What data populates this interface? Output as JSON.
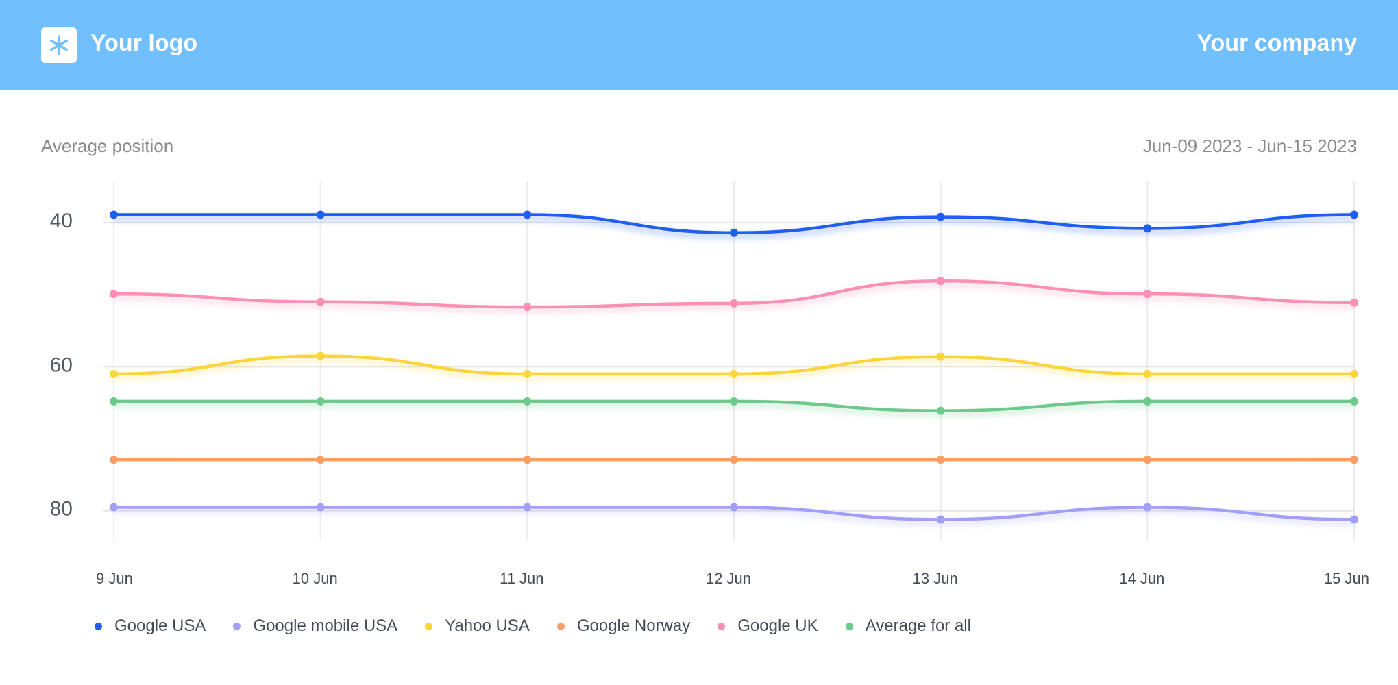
{
  "header": {
    "logo_label": "Your logo",
    "logo_icon": "asterisk-icon",
    "company": "Your company",
    "background_color": "#72bffd"
  },
  "subtitle": "Average position",
  "date_range": "Jun-09 2023 - Jun-15 2023",
  "chart_data": {
    "type": "line",
    "title": "",
    "xlabel": "",
    "ylabel": "",
    "categories": [
      "9 Jun",
      "10 Jun",
      "11 Jun",
      "12 Jun",
      "13 Jun",
      "14 Jun",
      "15 Jun"
    ],
    "y_ticks": [
      40,
      60,
      80
    ],
    "ylim": [
      84.5,
      34.5
    ],
    "y_inverted": true,
    "grid": true,
    "legend_position": "bottom-left",
    "series": [
      {
        "name": "Google USA",
        "color": "#1f5ef0",
        "values": [
          39.2,
          39.2,
          39.2,
          41.7,
          39.5,
          41.1,
          39.2
        ]
      },
      {
        "name": "Google mobile USA",
        "color": "#a19ff7",
        "values": [
          79.8,
          79.8,
          79.8,
          79.8,
          81.5,
          79.8,
          81.5
        ]
      },
      {
        "name": "Yahoo USA",
        "color": "#fcd53c",
        "values": [
          61.3,
          58.8,
          61.3,
          61.3,
          58.9,
          61.3,
          61.3
        ]
      },
      {
        "name": "Google Norway",
        "color": "#f99f66",
        "values": [
          73.2,
          73.2,
          73.2,
          73.2,
          73.2,
          73.2,
          73.2
        ]
      },
      {
        "name": "Google UK",
        "color": "#fb8fb6",
        "values": [
          50.2,
          51.3,
          52.0,
          51.5,
          48.4,
          50.2,
          51.4
        ]
      },
      {
        "name": "Average for all",
        "color": "#6ccb8c",
        "values": [
          65.1,
          65.1,
          65.1,
          65.1,
          66.4,
          65.1,
          65.1
        ]
      }
    ]
  }
}
